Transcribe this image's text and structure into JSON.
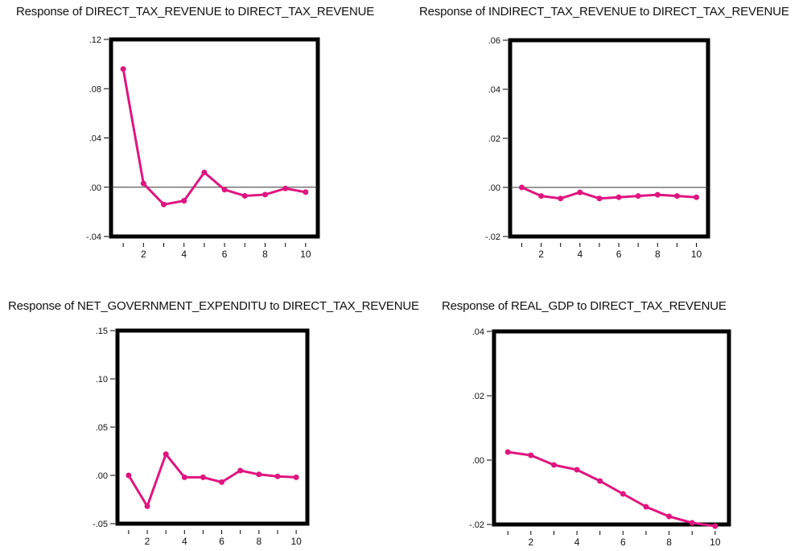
{
  "chart_data": [
    {
      "type": "line",
      "title": "Response of DIRECT_TAX_REVENUE to DIRECT_TAX_REVENUE",
      "x": [
        1,
        2,
        3,
        4,
        5,
        6,
        7,
        8,
        9,
        10
      ],
      "xticks": [
        "2",
        "4",
        "6",
        "8",
        "10"
      ],
      "ylim": [
        -0.04,
        0.12
      ],
      "yticks": [
        ".12",
        ".08",
        ".04",
        ".00",
        "-.04"
      ],
      "series": [
        {
          "values": [
            0.096,
            0.003,
            -0.014,
            -0.011,
            0.012,
            -0.002,
            -0.007,
            -0.006,
            -0.001,
            -0.004
          ]
        }
      ],
      "zero_line": true,
      "color": "#e0157f"
    },
    {
      "type": "line",
      "title": "Response of INDIRECT_TAX_REVENUE to DIRECT_TAX_REVENUE",
      "x": [
        1,
        2,
        3,
        4,
        5,
        6,
        7,
        8,
        9,
        10
      ],
      "xticks": [
        "2",
        "4",
        "6",
        "8",
        "10"
      ],
      "ylim": [
        -0.02,
        0.06
      ],
      "yticks": [
        ".06",
        ".04",
        ".02",
        ".00",
        "-.02"
      ],
      "series": [
        {
          "values": [
            0.0,
            -0.0035,
            -0.0045,
            -0.002,
            -0.0045,
            -0.004,
            -0.0035,
            -0.003,
            -0.0035,
            -0.004
          ]
        }
      ],
      "zero_line": true,
      "color": "#e0157f"
    },
    {
      "type": "line",
      "title": "Response of NET_GOVERNMENT_EXPENDITU to DIRECT_TAX_REVENUE",
      "x": [
        1,
        2,
        3,
        4,
        5,
        6,
        7,
        8,
        9,
        10
      ],
      "xticks": [
        "2",
        "4",
        "6",
        "8",
        "10"
      ],
      "ylim": [
        -0.05,
        0.15
      ],
      "yticks": [
        ".15",
        ".10",
        ".05",
        ".00",
        "-.05"
      ],
      "series": [
        {
          "values": [
            0.0,
            -0.032,
            0.022,
            -0.002,
            -0.002,
            -0.007,
            0.005,
            0.001,
            -0.001,
            -0.002
          ]
        }
      ],
      "zero_line": false,
      "color": "#e0157f"
    },
    {
      "type": "line",
      "title": "Response of REAL_GDP to DIRECT_TAX_REVENUE",
      "x": [
        1,
        2,
        3,
        4,
        5,
        6,
        7,
        8,
        9,
        10
      ],
      "xticks": [
        "2",
        "4",
        "6",
        "8",
        "10"
      ],
      "ylim": [
        -0.02,
        0.04
      ],
      "yticks": [
        ".04",
        ".02",
        ".00",
        "-.02"
      ],
      "series": [
        {
          "values": [
            0.0025,
            0.0015,
            -0.0015,
            -0.003,
            -0.0065,
            -0.0105,
            -0.0145,
            -0.0175,
            -0.0195,
            -0.0205
          ]
        }
      ],
      "zero_line": false,
      "color": "#e0157f"
    }
  ]
}
